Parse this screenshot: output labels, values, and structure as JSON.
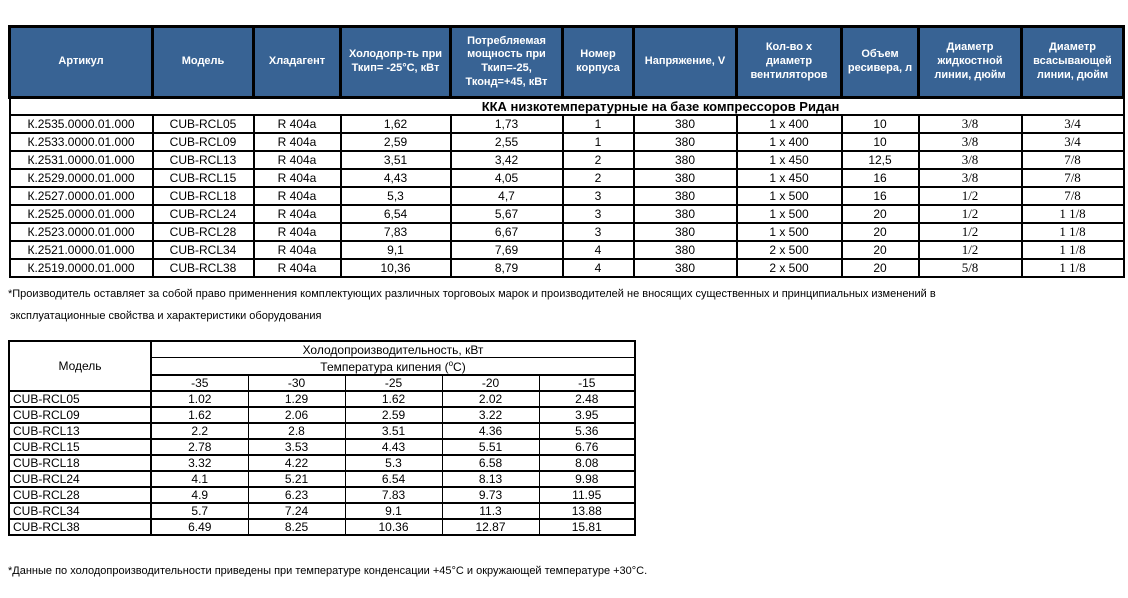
{
  "colors": {
    "header_bg": "#386394",
    "header_text": "#ffffff",
    "border": "#000000"
  },
  "table1": {
    "headers": [
      "Артикул",
      "Модель",
      "Хладагент",
      "Холодопр-ть при\nТкип= -25°С, кВт",
      "Потребляемая\nмощность при\nТкип=-25,\nТконд=+45, кВт",
      "Номер\nкорпуса",
      "Напряжение, V",
      "Кол-во х\nдиаметр\nвентиляторов",
      "Объем\nресивера, л",
      "Диаметр\nжидкостной\nлинии, дюйм",
      "Диаметр\nвсасывающей\nлинии, дюйм"
    ],
    "section_title": "ККА низкотемпературные на базе компрессоров Ридан",
    "rows": [
      [
        "К.2535.0000.01.000",
        "CUB-RCL05",
        "R 404a",
        "1,62",
        "1,73",
        "1",
        "380",
        "1 x 400",
        "10",
        "3/8",
        "3/4"
      ],
      [
        "К.2533.0000.01.000",
        "CUB-RCL09",
        "R 404a",
        "2,59",
        "2,55",
        "1",
        "380",
        "1 x 400",
        "10",
        "3/8",
        "3/4"
      ],
      [
        "К.2531.0000.01.000",
        "CUB-RCL13",
        "R 404a",
        "3,51",
        "3,42",
        "2",
        "380",
        "1 x 450",
        "12,5",
        "3/8",
        "7/8"
      ],
      [
        "К.2529.0000.01.000",
        "CUB-RCL15",
        "R 404a",
        "4,43",
        "4,05",
        "2",
        "380",
        "1 x 450",
        "16",
        "3/8",
        "7/8"
      ],
      [
        "К.2527.0000.01.000",
        "CUB-RCL18",
        "R 404a",
        "5,3",
        "4,7",
        "3",
        "380",
        "1 x 500",
        "16",
        "1/2",
        "7/8"
      ],
      [
        "К.2525.0000.01.000",
        "CUB-RCL24",
        "R 404a",
        "6,54",
        "5,67",
        "3",
        "380",
        "1 x 500",
        "20",
        "1/2",
        "1 1/8"
      ],
      [
        "К.2523.0000.01.000",
        "CUB-RCL28",
        "R 404a",
        "7,83",
        "6,67",
        "3",
        "380",
        "1 x 500",
        "20",
        "1/2",
        "1 1/8"
      ],
      [
        "К.2521.0000.01.000",
        "CUB-RCL34",
        "R 404a",
        "9,1",
        "7,69",
        "4",
        "380",
        "2 x 500",
        "20",
        "1/2",
        "1 1/8"
      ],
      [
        "К.2519.0000.01.000",
        "CUB-RCL38",
        "R 404a",
        "10,36",
        "8,79",
        "4",
        "380",
        "2 x 500",
        "20",
        "5/8",
        "1 1/8"
      ]
    ],
    "footnote_line1": "*Производитель оставляет за собой право применнения комплектующих различных торговоых марок и производителей не вносящих существенных и принципиальных изменений в",
    "footnote_line2": "эксплуатационные свойства и характеристики оборудования"
  },
  "table2": {
    "model_header": "Модель",
    "group_header": "Холодопроизводительность, кВт",
    "subgroup_prefix": "Температура кипения (",
    "subgroup_sup": "о",
    "subgroup_suffix": "С)",
    "temps": [
      "-35",
      "-30",
      "-25",
      "-20",
      "-15"
    ],
    "rows": [
      {
        "model": "CUB-RCL05",
        "values": [
          "1.02",
          "1.29",
          "1.62",
          "2.02",
          "2.48"
        ]
      },
      {
        "model": "CUB-RCL09",
        "values": [
          "1.62",
          "2.06",
          "2.59",
          "3.22",
          "3.95"
        ]
      },
      {
        "model": "CUB-RCL13",
        "values": [
          "2.2",
          "2.8",
          "3.51",
          "4.36",
          "5.36"
        ]
      },
      {
        "model": "CUB-RCL15",
        "values": [
          "2.78",
          "3.53",
          "4.43",
          "5.51",
          "6.76"
        ]
      },
      {
        "model": "CUB-RCL18",
        "values": [
          "3.32",
          "4.22",
          "5.3",
          "6.58",
          "8.08"
        ]
      },
      {
        "model": "CUB-RCL24",
        "values": [
          "4.1",
          "5.21",
          "6.54",
          "8.13",
          "9.98"
        ]
      },
      {
        "model": "CUB-RCL28",
        "values": [
          "4.9",
          "6.23",
          "7.83",
          "9.73",
          "11.95"
        ]
      },
      {
        "model": "CUB-RCL34",
        "values": [
          "5.7",
          "7.24",
          "9.1",
          "11.3",
          "13.88"
        ]
      },
      {
        "model": "CUB-RCL38",
        "values": [
          "6.49",
          "8.25",
          "10.36",
          "12.87",
          "15.81"
        ]
      }
    ],
    "footnote": "*Данные по холодопроизводительности приведены при температуре конденсации +45°С и окружающей температуре +30°С."
  }
}
